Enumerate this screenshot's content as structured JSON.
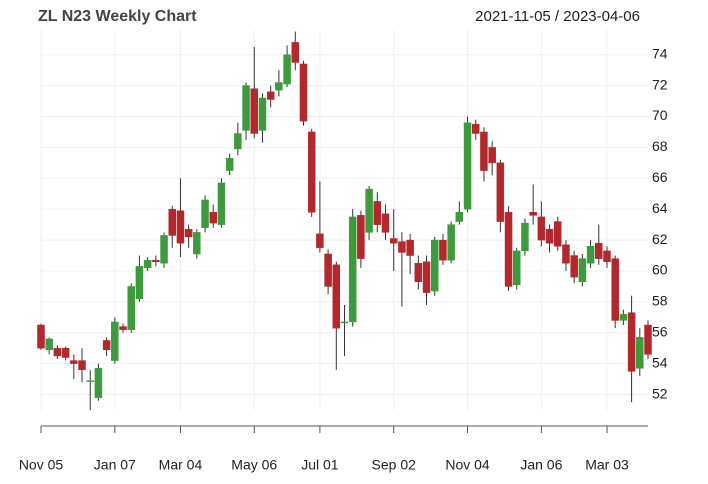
{
  "chart_data": {
    "type": "candlestick",
    "title": "ZL N23 Weekly Chart",
    "subtitle": "2021-11-05 / 2023-04-06",
    "categories": [
      "Nov 05",
      null,
      null,
      null,
      null,
      null,
      null,
      null,
      null,
      "Jan 07",
      null,
      null,
      null,
      null,
      null,
      null,
      null,
      "Mar 04",
      null,
      null,
      null,
      null,
      null,
      null,
      null,
      null,
      "May 06",
      null,
      null,
      null,
      null,
      null,
      null,
      null,
      "Jul 01",
      null,
      null,
      null,
      null,
      null,
      null,
      null,
      null,
      "Sep 02",
      null,
      null,
      null,
      null,
      null,
      null,
      null,
      null,
      "Nov 04",
      null,
      null,
      null,
      null,
      null,
      null,
      null,
      null,
      "Jan 06",
      null,
      null,
      null,
      null,
      null,
      null,
      null,
      "Mar 03",
      null,
      null,
      null,
      null,
      null
    ],
    "open": [
      56.5,
      54.9,
      55.0,
      55.0,
      54.2,
      54.2,
      52.9,
      51.8,
      55.5,
      54.2,
      56.4,
      56.2,
      58.2,
      60.2,
      60.7,
      60.5,
      64.0,
      63.9,
      62.7,
      61.1,
      62.8,
      63.8,
      63.0,
      66.5,
      67.9,
      69.1,
      71.8,
      69.1,
      71.6,
      71.7,
      72.1,
      74.8,
      73.4,
      69.0,
      62.4,
      61.1,
      60.4,
      56.7,
      56.7,
      63.6,
      62.5,
      64.5,
      63.7,
      62.1,
      61.9,
      62.0,
      60.5,
      60.6,
      58.7,
      62.0,
      60.7,
      63.2,
      64.0,
      69.5,
      69.0,
      68.0,
      67.0,
      63.8,
      59.1,
      61.3,
      63.8,
      63.5,
      62.7,
      63.2,
      61.7,
      61.0,
      59.3,
      60.5,
      61.8,
      61.3,
      60.8,
      56.8,
      57.3,
      53.7,
      56.5
    ],
    "high": [
      56.6,
      55.7,
      55.2,
      55.1,
      54.6,
      55.0,
      53.6,
      54.0,
      55.7,
      57.0,
      56.6,
      59.2,
      61.0,
      60.9,
      61.0,
      62.5,
      64.2,
      66.0,
      63.0,
      62.7,
      64.9,
      64.3,
      66.0,
      67.6,
      69.6,
      72.2,
      74.5,
      71.5,
      72.0,
      73.0,
      74.6,
      75.5,
      73.6,
      69.2,
      65.8,
      61.4,
      60.6,
      57.8,
      64.0,
      63.9,
      65.5,
      65.1,
      64.3,
      64.0,
      62.5,
      62.4,
      61.0,
      61.0,
      62.2,
      62.4,
      63.2,
      64.5,
      70.0,
      69.8,
      69.3,
      68.4,
      67.2,
      64.2,
      61.5,
      63.4,
      65.6,
      64.5,
      63.0,
      63.5,
      62.0,
      61.3,
      61.1,
      62.0,
      63.0,
      61.6,
      61.0,
      57.5,
      58.4,
      56.3,
      56.8
    ],
    "low": [
      54.9,
      54.6,
      54.3,
      54.2,
      53.0,
      52.8,
      51.0,
      51.6,
      54.5,
      54.0,
      56.0,
      56.0,
      58.0,
      60.0,
      60.3,
      60.2,
      61.5,
      60.9,
      61.5,
      60.8,
      62.5,
      62.8,
      62.8,
      66.2,
      67.5,
      68.5,
      68.6,
      68.3,
      70.6,
      71.3,
      71.9,
      73.0,
      69.4,
      63.5,
      61.2,
      58.5,
      53.6,
      54.5,
      56.4,
      60.2,
      62.0,
      62.5,
      62.0,
      60.0,
      57.7,
      59.8,
      58.8,
      57.8,
      58.4,
      60.4,
      60.5,
      63.0,
      63.8,
      68.5,
      65.8,
      66.2,
      62.5,
      58.7,
      58.8,
      61.0,
      63.0,
      61.6,
      61.2,
      61.3,
      60.0,
      59.2,
      59.0,
      60.2,
      60.4,
      60.2,
      56.3,
      56.5,
      51.5,
      53.2,
      54.3
    ],
    "close": [
      55.0,
      55.6,
      54.5,
      54.4,
      54.0,
      53.6,
      52.9,
      53.7,
      54.9,
      56.7,
      56.2,
      59.0,
      60.3,
      60.7,
      60.6,
      62.3,
      62.3,
      61.8,
      62.2,
      62.5,
      64.6,
      63.1,
      65.7,
      67.3,
      68.9,
      72.0,
      68.9,
      71.2,
      71.1,
      72.2,
      74.0,
      73.5,
      69.7,
      63.8,
      61.5,
      59.0,
      56.3,
      56.7,
      63.5,
      60.8,
      65.3,
      63.0,
      62.5,
      61.8,
      61.2,
      61.0,
      59.3,
      58.6,
      62.0,
      60.7,
      63.0,
      63.8,
      69.6,
      68.9,
      66.5,
      67.0,
      63.2,
      59.0,
      61.3,
      63.1,
      63.6,
      62.0,
      61.8,
      61.6,
      60.5,
      59.6,
      60.8,
      61.6,
      60.8,
      60.6,
      56.8,
      57.2,
      53.5,
      55.7,
      54.6
    ],
    "up_color": "#3d9b3d",
    "down_color": "#b3282d",
    "ylim": [
      51,
      75.6
    ],
    "yticks": [
      52,
      54,
      56,
      58,
      60,
      62,
      64,
      66,
      68,
      70,
      72,
      74
    ],
    "grid": true
  }
}
